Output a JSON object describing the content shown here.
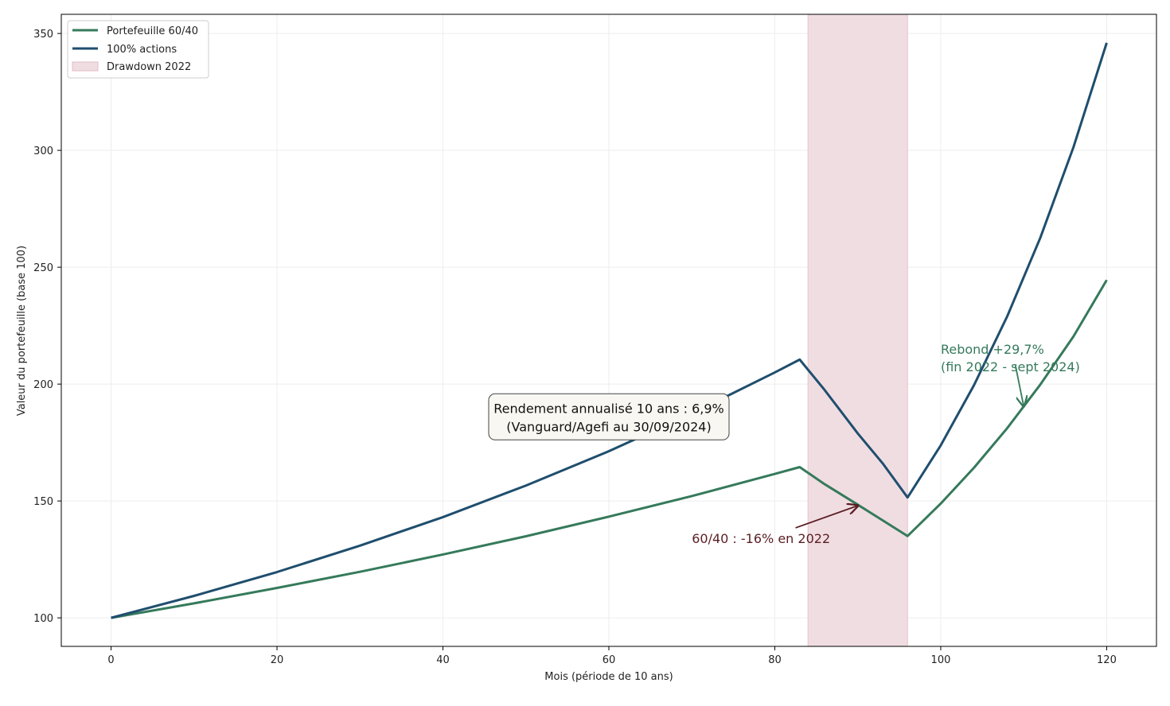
{
  "chart_data": {
    "type": "line",
    "title": "",
    "xlabel": "Mois (période de 10 ans)",
    "ylabel": "Valeur du portefeuille (base 100)",
    "xlim": [
      -6,
      126
    ],
    "ylim": [
      87.8,
      358.2
    ],
    "xticks": [
      0,
      20,
      40,
      60,
      80,
      100,
      120
    ],
    "yticks": [
      100,
      150,
      200,
      250,
      300,
      350
    ],
    "grid": true,
    "legend_position": "top-left",
    "x": [
      0,
      10,
      20,
      30,
      40,
      50,
      60,
      70,
      80,
      83,
      86,
      90,
      93,
      96,
      100,
      104,
      108,
      112,
      116,
      120
    ],
    "series": [
      {
        "name": "Portefeuille 60/40",
        "color": "#357a5b",
        "values": [
          100,
          106.2,
          112.8,
          119.7,
          127.1,
          134.9,
          143.3,
          152.1,
          161.6,
          164.5,
          157.2,
          148.4,
          141.7,
          135,
          148.9,
          164.2,
          181.1,
          199.8,
          220.4,
          244.5
        ]
      },
      {
        "name": "100% actions",
        "color": "#1f4e6e",
        "values": [
          100,
          109.4,
          119.6,
          130.9,
          143.1,
          156.6,
          171.3,
          187.4,
          205.0,
          210.5,
          197.5,
          178.9,
          166.1,
          151.5,
          173.8,
          199.5,
          228.9,
          262.6,
          301.4,
          346
        ]
      }
    ],
    "shaded_region": {
      "name": "Drawdown 2022",
      "x_start": 84,
      "x_end": 96,
      "color": "#e8cdd5"
    },
    "annotations": [
      {
        "id": "box",
        "lines": [
          "Rendement annualisé 10 ans : 6,9%",
          "(Vanguard/Agefi au 30/09/2024)"
        ],
        "x": 60,
        "y": 186
      },
      {
        "id": "drop",
        "lines": [
          "60/40 : -16% en 2022"
        ],
        "x": 70,
        "y": 134,
        "arrow_to": [
          90,
          148
        ],
        "arrow_from": [
          82.5,
          138.5
        ],
        "color": "#5a1e22"
      },
      {
        "id": "rebound",
        "lines": [
          "Rebond +29,7%",
          "(fin 2022 - sept 2024)"
        ],
        "x": 100,
        "y": 215,
        "arrow_to": [
          110,
          190.5
        ],
        "arrow_from": [
          109,
          208
        ],
        "color": "#357a5b"
      }
    ]
  }
}
